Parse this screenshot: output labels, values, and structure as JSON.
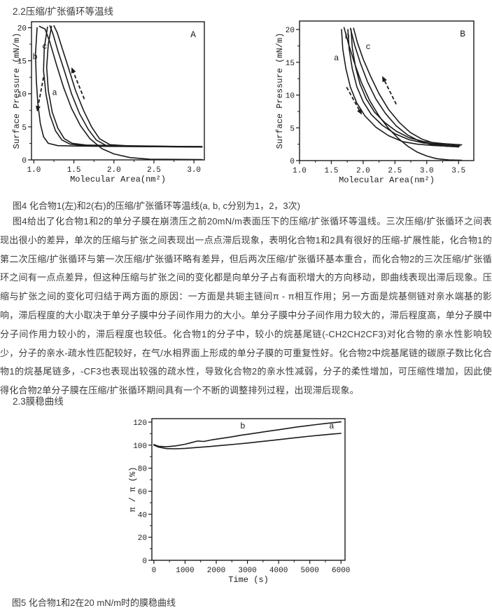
{
  "document": {
    "text_color": "#3d3d3d",
    "chart_ink_color": "#1b1b1b",
    "section_2_2_heading": "2.2压缩/扩张循环等温线",
    "figure4_caption": "图4 化合物1(左)和2(右)的压缩/扩张循环等温线(a, b, c分别为1，2，3次)",
    "body_paragraph": "图4给出了化合物1和2的单分子膜在崩溃压之前20mN/m表面压下的压缩/扩张循环等温线。三次压缩/扩张循环之间表现出很小的差异，单次的压缩与扩张之间表现出一点点滞后现象，表明化合物1和2具有很好的压缩-扩展性能，化合物1的第二次压缩/扩张循环与第一次压缩/扩张循环略有差异，但后两次压缩/扩张循环基本重合，而化合物2的三次压缩/扩张循环之间有一点点差异，但这种压缩与扩张之间的变化都是向单分子占有面积增大的方向移动，即曲线表现出滞后现象。压缩与扩张之间的变化可归结于两方面的原因：一方面是共轭主链间π - π相互作用；另一方面是烷基侧链对亲水端基的影响，滞后程度的大小取决于单分子膜中分子间作用力的大小。单分子膜中分子间作用力较大的，滞后程度高，单分子膜中分子间作用力较小的，滞后程度也较低。化合物1的分子中，较小的烷基尾链(-CH2CH2CF3)对化合物的亲水性影响较少，分子的亲水-疏水性匹配较好，在气/水相界面上形成的单分子膜的可重复性好。化合物2中烷基尾链的碳原子数比化合物1的烷基尾链多，-CF3也表现出较强的疏水性，导致化合物2的亲水性减弱，分子的柔性增加，可压缩性增加，因此使得化合物2单分子膜在压缩/扩张循环期间具有一个不断的调整排列过程，出现滞后现象。",
    "section_2_3_heading": "2.3膜稳曲线",
    "figure5_caption": "图5 化合物1和2在20 mN/m时的膜稳曲线"
  },
  "chart_data": [
    {
      "type": "line",
      "panel_label": "A",
      "xlabel": "Molecular Area(nm²)",
      "ylabel": "Surface Pressure (mN/m)",
      "xlim": [
        1.0,
        3.1
      ],
      "ylim": [
        0,
        20
      ],
      "xticks": [
        1.0,
        1.5,
        2.0,
        2.5,
        3.0
      ],
      "xtick_labels": [
        "1.0",
        "1.5",
        "2.0",
        "2.5",
        "3.0"
      ],
      "yticks": [
        0,
        5,
        10,
        15,
        20
      ],
      "ytick_labels": [
        "0",
        "5",
        "10",
        "15",
        "20"
      ],
      "minor_x_step": 0.25,
      "minor_y_step": 2.5,
      "grid": false,
      "curve_labels": [
        {
          "text": "a",
          "x": 1.26,
          "y": 9.8
        },
        {
          "text": "b",
          "x": 1.015,
          "y": 15.2
        },
        {
          "text": "c",
          "x": 1.135,
          "y": 16.8
        }
      ],
      "arrows": [
        {
          "from": [
            1.63,
            9.2
          ],
          "to": [
            1.47,
            14.0
          ]
        },
        {
          "from": [
            1.12,
            12.5
          ],
          "to": [
            1.04,
            7.3
          ]
        }
      ],
      "series": [
        {
          "name": "cycle1-compression",
          "points": [
            [
              3.1,
              0.05
            ],
            [
              2.45,
              0.1
            ],
            [
              2.2,
              0.35
            ],
            [
              2.0,
              0.9
            ],
            [
              1.85,
              1.7
            ],
            [
              1.7,
              3.2
            ],
            [
              1.58,
              5.2
            ],
            [
              1.47,
              7.8
            ],
            [
              1.37,
              11
            ],
            [
              1.28,
              14.5
            ],
            [
              1.2,
              17.8
            ],
            [
              1.14,
              19.8
            ],
            [
              1.07,
              20.2
            ]
          ]
        },
        {
          "name": "cycle1-expansion",
          "points": [
            [
              1.04,
              20
            ],
            [
              1.02,
              16
            ],
            [
              1.03,
              12
            ],
            [
              1.05,
              8.5
            ],
            [
              1.08,
              5.5
            ],
            [
              1.12,
              3.5
            ],
            [
              1.18,
              2.5
            ],
            [
              1.3,
              2.15
            ],
            [
              1.5,
              2.1
            ],
            [
              1.9,
              2.05
            ],
            [
              2.4,
              2.0
            ],
            [
              3.1,
              1.95
            ]
          ]
        },
        {
          "name": "cycle2-compression",
          "points": [
            [
              3.1,
              1.95
            ],
            [
              2.5,
              2.0
            ],
            [
              2.1,
              2.05
            ],
            [
              1.9,
              2.2
            ],
            [
              1.78,
              3.0
            ],
            [
              1.68,
              4.6
            ],
            [
              1.57,
              7.0
            ],
            [
              1.47,
              10
            ],
            [
              1.38,
              13.5
            ],
            [
              1.3,
              16.5
            ],
            [
              1.24,
              19
            ],
            [
              1.2,
              20.3
            ]
          ]
        },
        {
          "name": "cycle2-expansion",
          "points": [
            [
              1.17,
              20.1
            ],
            [
              1.13,
              17
            ],
            [
              1.12,
              13.5
            ],
            [
              1.15,
              10
            ],
            [
              1.2,
              6.8
            ],
            [
              1.27,
              4.4
            ],
            [
              1.35,
              3.0
            ],
            [
              1.45,
              2.4
            ],
            [
              1.6,
              2.2
            ],
            [
              2.0,
              2.1
            ],
            [
              2.6,
              2.0
            ],
            [
              3.1,
              1.95
            ]
          ]
        },
        {
          "name": "cycle3-compression",
          "points": [
            [
              3.1,
              2.0
            ],
            [
              2.6,
              2.05
            ],
            [
              2.2,
              2.1
            ],
            [
              1.95,
              2.3
            ],
            [
              1.82,
              3.2
            ],
            [
              1.72,
              5.0
            ],
            [
              1.62,
              7.5
            ],
            [
              1.52,
              10.5
            ],
            [
              1.43,
              14
            ],
            [
              1.35,
              17
            ],
            [
              1.29,
              19.3
            ],
            [
              1.25,
              20.3
            ]
          ]
        },
        {
          "name": "cycle3-expansion",
          "points": [
            [
              1.22,
              20.2
            ],
            [
              1.18,
              17.5
            ],
            [
              1.16,
              14
            ],
            [
              1.18,
              10.5
            ],
            [
              1.23,
              7.2
            ],
            [
              1.3,
              4.8
            ],
            [
              1.38,
              3.2
            ],
            [
              1.48,
              2.5
            ],
            [
              1.65,
              2.25
            ],
            [
              2.1,
              2.15
            ],
            [
              2.7,
              2.05
            ],
            [
              3.1,
              2.0
            ]
          ]
        }
      ]
    },
    {
      "type": "line",
      "panel_label": "B",
      "xlabel": "Molecular Area(nm²)",
      "ylabel": "Surface Pressure (mN/m)",
      "xlim": [
        1.0,
        3.7
      ],
      "ylim": [
        0,
        20
      ],
      "xticks": [
        1.0,
        1.5,
        2.0,
        2.5,
        3.0,
        3.5
      ],
      "xtick_labels": [
        "1.0",
        "1.5",
        "2.0",
        "2.5",
        "3.0",
        "3.5"
      ],
      "yticks": [
        0,
        5,
        10,
        15,
        20
      ],
      "ytick_labels": [
        "0",
        "5",
        "10",
        "15",
        "20"
      ],
      "minor_x_step": 0.25,
      "minor_y_step": 2.5,
      "grid": false,
      "curve_labels": [
        {
          "text": "a",
          "x": 1.58,
          "y": 15.3
        },
        {
          "text": "b",
          "x": 1.75,
          "y": 18.6
        },
        {
          "text": "c",
          "x": 2.08,
          "y": 17.0
        }
      ],
      "arrows": [
        {
          "from": [
            1.74,
            11.2
          ],
          "to": [
            1.98,
            7.0
          ]
        },
        {
          "from": [
            2.52,
            8.6
          ],
          "to": [
            2.3,
            12.9
          ]
        }
      ],
      "series": [
        {
          "name": "cycle1-compression",
          "points": [
            [
              3.55,
              0.05
            ],
            [
              3.35,
              0.1
            ],
            [
              3.15,
              0.3
            ],
            [
              3.0,
              0.7
            ],
            [
              2.85,
              1.3
            ],
            [
              2.7,
              2.2
            ],
            [
              2.55,
              3.4
            ],
            [
              2.4,
              4.9
            ],
            [
              2.25,
              6.8
            ],
            [
              2.1,
              9.2
            ],
            [
              1.97,
              12
            ],
            [
              1.86,
              15
            ],
            [
              1.77,
              17.8
            ],
            [
              1.7,
              20.3
            ]
          ]
        },
        {
          "name": "cycle1-expansion",
          "points": [
            [
              1.66,
              20
            ],
            [
              1.68,
              17
            ],
            [
              1.73,
              14
            ],
            [
              1.8,
              11.2
            ],
            [
              1.9,
              8.8
            ],
            [
              2.03,
              6.8
            ],
            [
              2.2,
              5.1
            ],
            [
              2.4,
              3.8
            ],
            [
              2.62,
              2.9
            ],
            [
              2.85,
              2.5
            ],
            [
              3.1,
              2.3
            ],
            [
              3.3,
              2.2
            ],
            [
              3.5,
              2.1
            ]
          ]
        },
        {
          "name": "cycle2-compression",
          "points": [
            [
              3.5,
              2.1
            ],
            [
              3.25,
              2.25
            ],
            [
              3.05,
              2.5
            ],
            [
              2.88,
              3.0
            ],
            [
              2.7,
              3.9
            ],
            [
              2.52,
              5.3
            ],
            [
              2.35,
              7.2
            ],
            [
              2.2,
              9.4
            ],
            [
              2.07,
              12
            ],
            [
              1.96,
              14.8
            ],
            [
              1.87,
              17.5
            ],
            [
              1.8,
              20.2
            ]
          ]
        },
        {
          "name": "cycle2-expansion",
          "points": [
            [
              1.76,
              20
            ],
            [
              1.78,
              17
            ],
            [
              1.83,
              14
            ],
            [
              1.9,
              11.3
            ],
            [
              2.0,
              9
            ],
            [
              2.13,
              7
            ],
            [
              2.3,
              5.4
            ],
            [
              2.5,
              4.1
            ],
            [
              2.72,
              3.2
            ],
            [
              2.95,
              2.7
            ],
            [
              3.2,
              2.45
            ],
            [
              3.52,
              2.25
            ]
          ]
        },
        {
          "name": "cycle3-compression",
          "points": [
            [
              3.52,
              2.25
            ],
            [
              3.3,
              2.4
            ],
            [
              3.1,
              2.7
            ],
            [
              2.92,
              3.3
            ],
            [
              2.74,
              4.3
            ],
            [
              2.57,
              5.8
            ],
            [
              2.4,
              7.8
            ],
            [
              2.25,
              10.2
            ],
            [
              2.12,
              12.8
            ],
            [
              2.0,
              15.5
            ],
            [
              1.91,
              18
            ],
            [
              1.85,
              20.2
            ]
          ]
        },
        {
          "name": "cycle3-expansion",
          "points": [
            [
              1.81,
              20
            ],
            [
              1.83,
              17.2
            ],
            [
              1.88,
              14.3
            ],
            [
              1.95,
              11.7
            ],
            [
              2.05,
              9.4
            ],
            [
              2.18,
              7.4
            ],
            [
              2.34,
              5.8
            ],
            [
              2.52,
              4.5
            ],
            [
              2.72,
              3.5
            ],
            [
              2.95,
              2.9
            ],
            [
              3.25,
              2.6
            ],
            [
              3.55,
              2.4
            ]
          ]
        }
      ]
    },
    {
      "type": "line",
      "panel_label": "",
      "xlabel": "Time (s)",
      "ylabel": "π / π (%)",
      "xlim": [
        0,
        6000
      ],
      "ylim": [
        0,
        120
      ],
      "xticks": [
        0,
        1000,
        2000,
        3000,
        4000,
        5000,
        6000
      ],
      "xtick_labels": [
        "0",
        "1000",
        "2000",
        "3000",
        "4000",
        "5000",
        "6000"
      ],
      "yticks": [
        0,
        20,
        40,
        60,
        80,
        100,
        120
      ],
      "ytick_labels": [
        "0",
        "20",
        "40",
        "60",
        "80",
        "100",
        "120"
      ],
      "minor_x_step": 500,
      "minor_y_step": 10,
      "grid": false,
      "curve_labels": [
        {
          "text": "b",
          "x": 2850,
          "y": 114.5
        },
        {
          "text": "a",
          "x": 5700,
          "y": 114.5
        }
      ],
      "arrows": [],
      "series": [
        {
          "name": "a",
          "points": [
            [
              0,
              100
            ],
            [
              150,
              98.3
            ],
            [
              400,
              97
            ],
            [
              700,
              96.8
            ],
            [
              1000,
              97.2
            ],
            [
              1400,
              98
            ],
            [
              1800,
              98.8
            ],
            [
              2200,
              99.8
            ],
            [
              2600,
              100.8
            ],
            [
              3000,
              101.8
            ],
            [
              3400,
              103
            ],
            [
              3800,
              104.2
            ],
            [
              4200,
              105.4
            ],
            [
              4600,
              106.6
            ],
            [
              5000,
              107.8
            ],
            [
              5400,
              108.8
            ],
            [
              5800,
              109.8
            ],
            [
              6000,
              110.2
            ]
          ]
        },
        {
          "name": "b",
          "points": [
            [
              0,
              100.5
            ],
            [
              150,
              99
            ],
            [
              400,
              98.6
            ],
            [
              700,
              99.4
            ],
            [
              1000,
              100.8
            ],
            [
              1200,
              102.2
            ],
            [
              1400,
              103.6
            ],
            [
              1600,
              103.2
            ],
            [
              1900,
              104.8
            ],
            [
              2200,
              106
            ],
            [
              2500,
              107.2
            ],
            [
              2800,
              108.6
            ],
            [
              3100,
              109.8
            ],
            [
              3400,
              111
            ],
            [
              3700,
              112.2
            ],
            [
              4000,
              113.4
            ],
            [
              4300,
              114.6
            ],
            [
              4600,
              115.8
            ],
            [
              4900,
              116.8
            ],
            [
              5200,
              117.8
            ],
            [
              5500,
              118.8
            ],
            [
              5800,
              119.6
            ],
            [
              6000,
              120.2
            ]
          ]
        }
      ]
    }
  ]
}
